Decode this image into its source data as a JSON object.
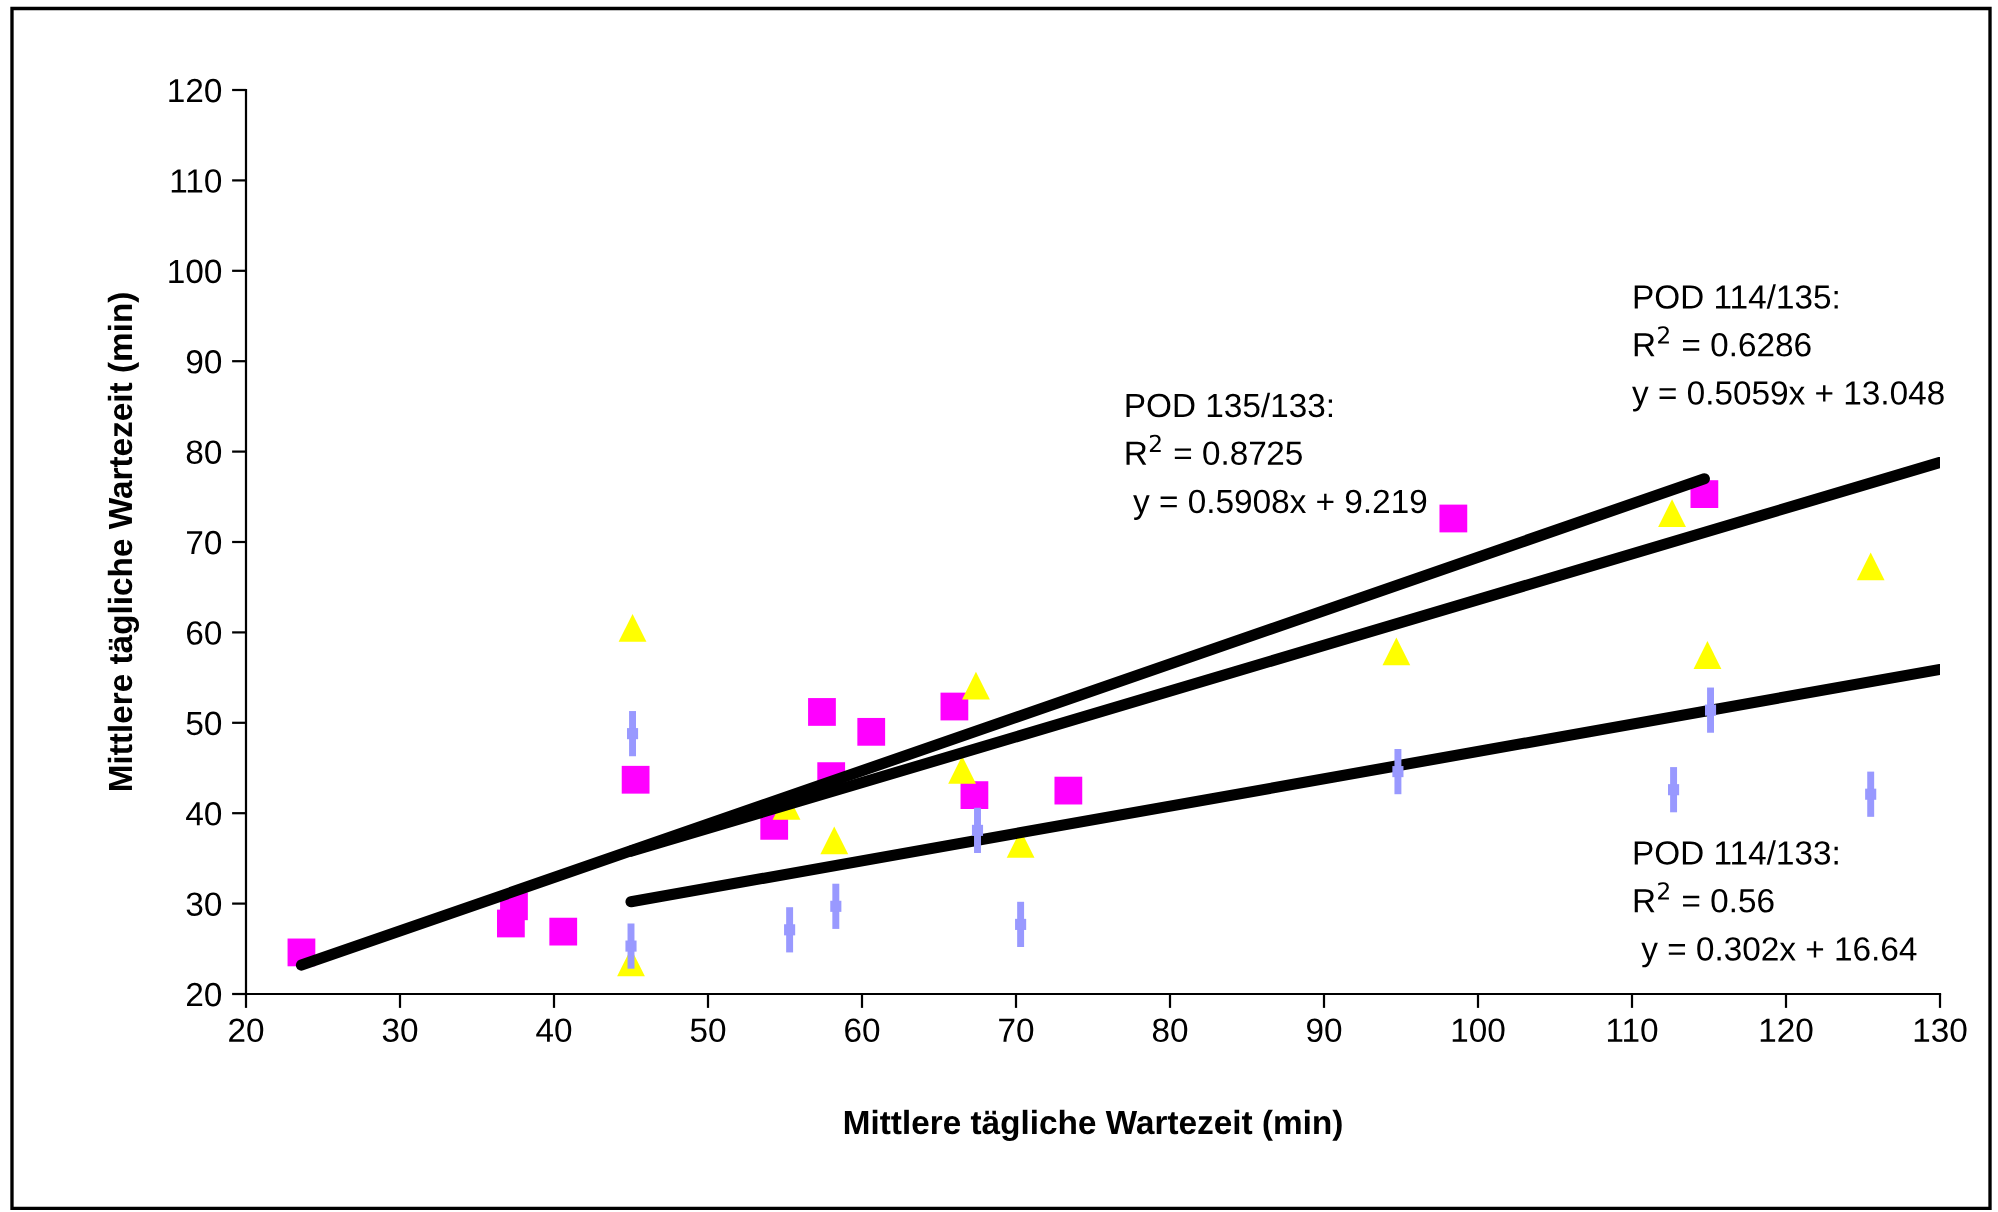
{
  "chart_data": {
    "type": "scatter",
    "xlabel": "Mittlere tägliche Wartezeit (min)",
    "ylabel": "Mittlere tägliche Wartezeit (min)",
    "xlim": [
      20,
      130
    ],
    "xticks": [
      20,
      30,
      40,
      50,
      60,
      70,
      80,
      90,
      100,
      110,
      120,
      130
    ],
    "ylim": [
      20,
      120
    ],
    "yticks": [
      20,
      30,
      40,
      50,
      60,
      70,
      80,
      90,
      100,
      110,
      120
    ],
    "grid": false,
    "legend": false,
    "series": [
      {
        "marker": "square",
        "color": "#ff00ff",
        "x": [
          23.6,
          37.2,
          37.4,
          40.6,
          45.3,
          54.3,
          57.4,
          58.0,
          60.6,
          66.0,
          67.3,
          73.4,
          98.4,
          114.7
        ],
        "values": [
          24.6,
          27.8,
          29.7,
          26.9,
          43.7,
          38.6,
          51.2,
          44.1,
          49.0,
          51.8,
          42.0,
          42.5,
          72.6,
          75.3
        ]
      },
      {
        "marker": "triangle",
        "color": "#ffff00",
        "x": [
          45.1,
          45.0,
          55.1,
          58.2,
          66.5,
          67.4,
          70.3,
          94.7,
          112.6,
          114.9,
          125.5
        ],
        "values": [
          60.5,
          23.5,
          40.8,
          37.0,
          44.8,
          54.1,
          36.6,
          57.9,
          73.2,
          57.5,
          67.3
        ]
      },
      {
        "marker": "square",
        "color": "#9999ff",
        "x": [
          45.1,
          45.0,
          55.3,
          58.3,
          67.5,
          70.3,
          94.8,
          112.7,
          115.1,
          125.5
        ],
        "values": [
          48.8,
          25.3,
          27.1,
          29.7,
          38.1,
          27.7,
          44.6,
          42.6,
          51.4,
          42.1
        ],
        "errors": [
          2.5,
          2.5,
          2.5,
          2.5,
          2.5,
          2.5,
          2.5,
          2.5,
          2.5,
          2.5
        ]
      },
      {
        "type": "line",
        "color": "#000000",
        "x": [
          23.6,
          114.7
        ],
        "values": [
          23.2,
          77.0
        ]
      },
      {
        "type": "line",
        "color": "#000000",
        "x": [
          45,
          130
        ],
        "values": [
          35.8,
          78.8
        ]
      },
      {
        "type": "line",
        "color": "#000000",
        "x": [
          45,
          130
        ],
        "values": [
          30.2,
          55.9
        ]
      }
    ],
    "annotations": [
      "POD 135/133:\nR$^{2}$ = 0.8725\n y = 0.5908x + 9.219",
      "POD 114/135:\nR$^{2}$ = 0.6286\ny = 0.5059x + 13.048",
      "POD 114/133:\nR$^{2}$ = 0.56\n y = 0.302x + 16.64"
    ]
  }
}
